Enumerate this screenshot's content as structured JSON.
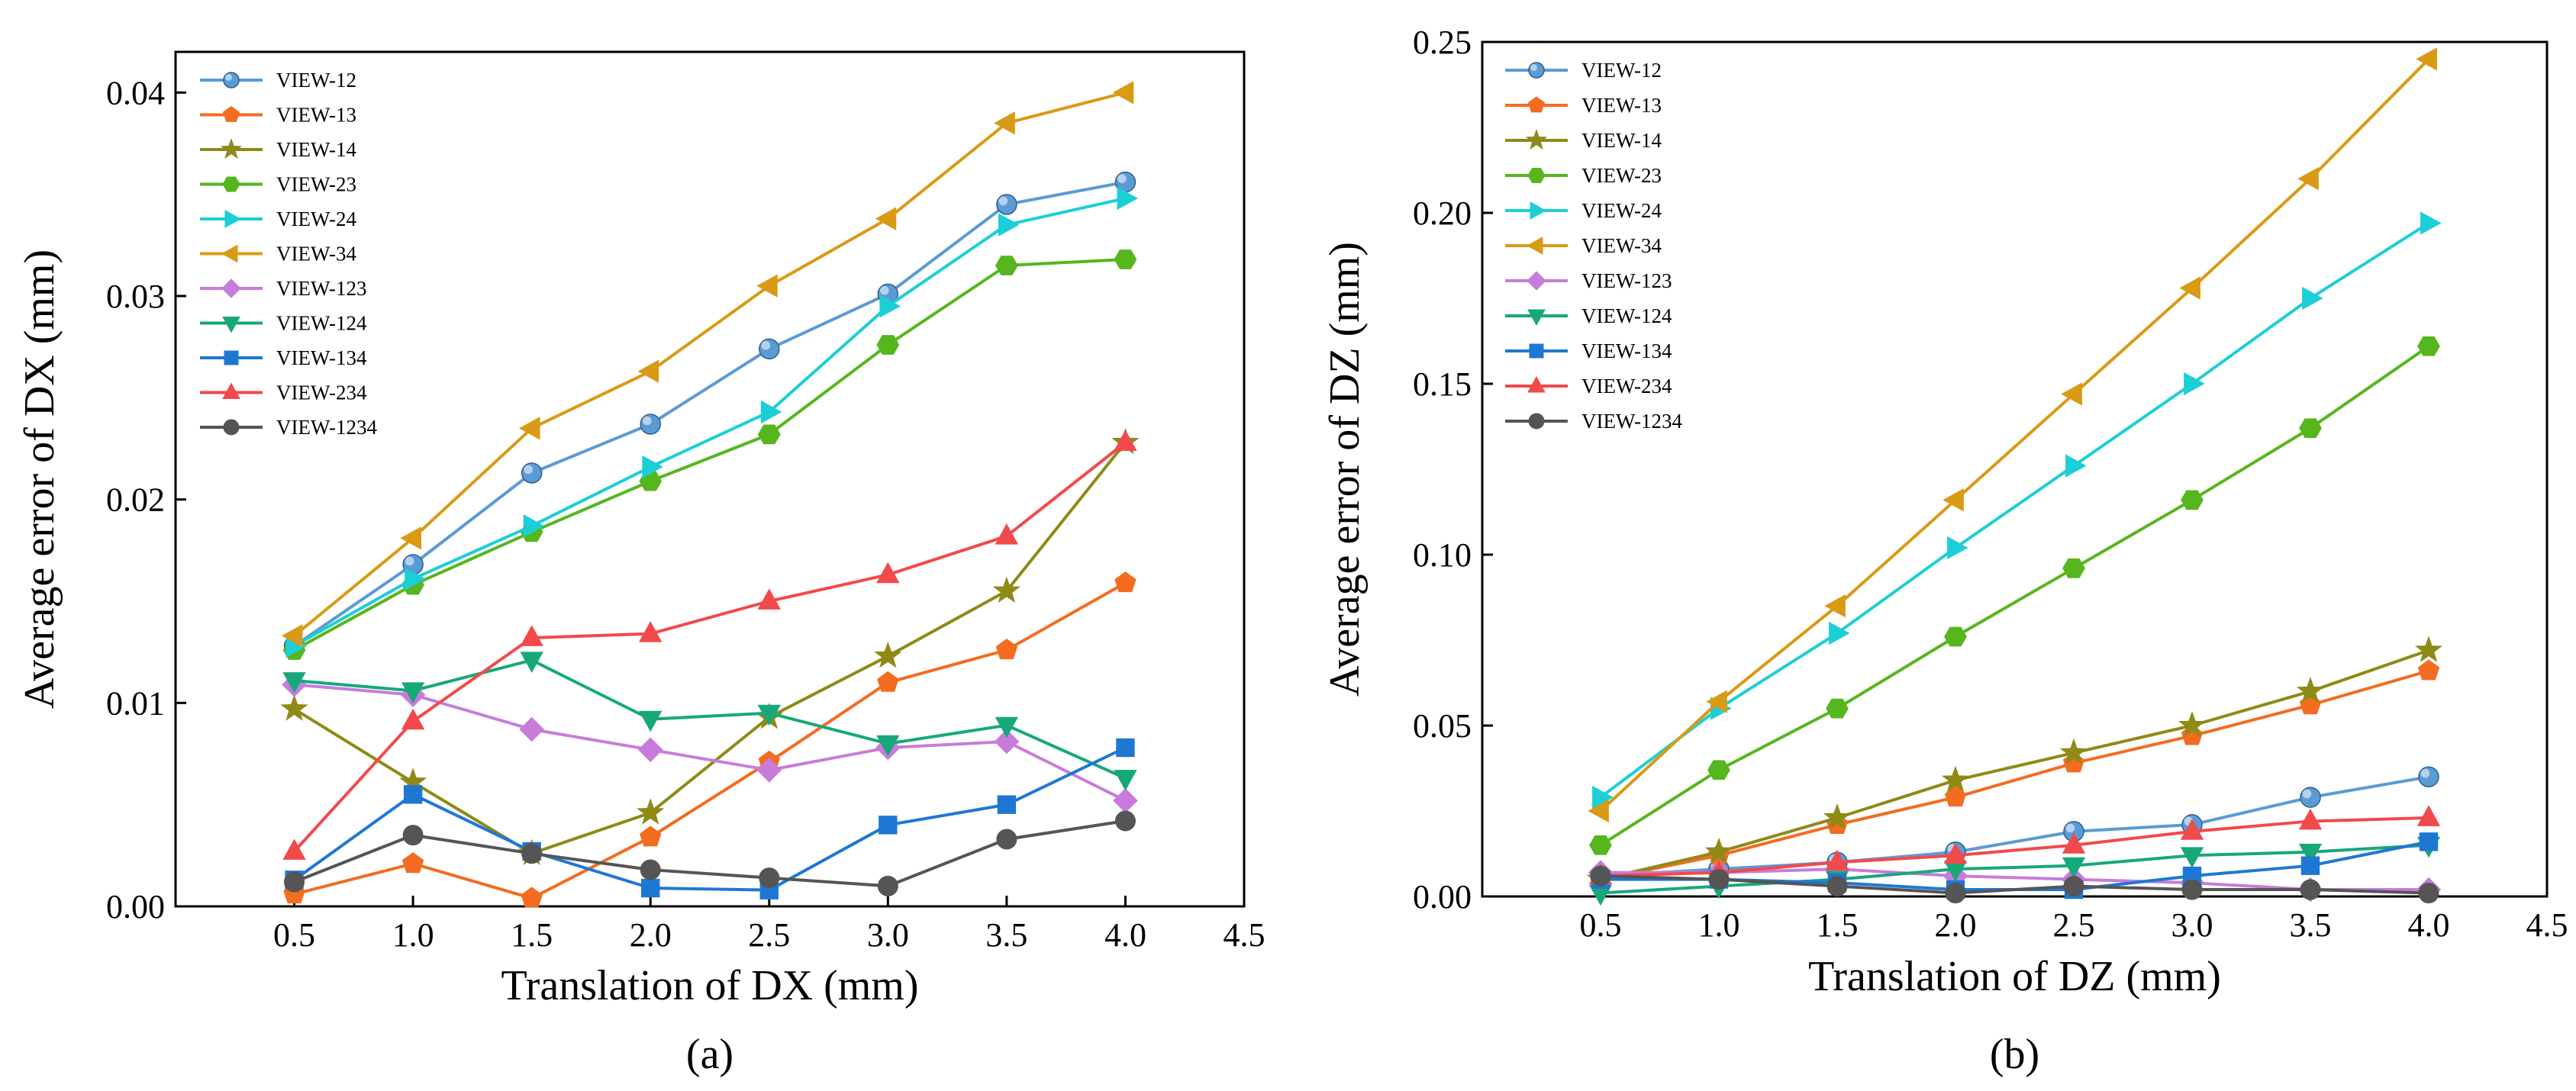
{
  "chart_data": [
    {
      "type": "line",
      "panel_label": "(a)",
      "xlabel": "Translation of DX (mm)",
      "ylabel": "Average error of DX (mm)",
      "xlim": [
        0,
        4.5
      ],
      "ylim": [
        0,
        0.042
      ],
      "xticks": [
        0.5,
        1.0,
        1.5,
        2.0,
        2.5,
        3.0,
        3.5,
        4.0,
        4.5
      ],
      "xtick_labels": [
        "0.5",
        "1.0",
        "1.5",
        "2.0",
        "2.5",
        "3.0",
        "3.5",
        "4.0",
        "4.5"
      ],
      "yticks": [
        0,
        0.01,
        0.02,
        0.03,
        0.04
      ],
      "ytick_labels": [
        "0.00",
        "0.01",
        "0.02",
        "0.03",
        "0.04"
      ],
      "legend_position": "top-left",
      "x": [
        0.5,
        1.0,
        1.5,
        2.0,
        2.5,
        3.0,
        3.5,
        4.0
      ],
      "series": [
        {
          "name": "VIEW-12",
          "color": "#5b9bd5",
          "marker": "sphere",
          "values": [
            0.0128,
            0.0168,
            0.0213,
            0.0237,
            0.0274,
            0.0301,
            0.0345,
            0.0356
          ]
        },
        {
          "name": "VIEW-13",
          "color": "#f36c20",
          "marker": "pentagon",
          "values": [
            0.0006,
            0.0021,
            0.0004,
            0.0034,
            0.0071,
            0.011,
            0.0126,
            0.0159
          ]
        },
        {
          "name": "VIEW-14",
          "color": "#8f8a16",
          "marker": "star",
          "values": [
            0.0097,
            0.0061,
            0.0026,
            0.0046,
            0.0093,
            0.0123,
            0.0155,
            0.0228
          ]
        },
        {
          "name": "VIEW-23",
          "color": "#56b61e",
          "marker": "hexagon",
          "values": [
            0.0126,
            0.0158,
            0.0184,
            0.0209,
            0.0232,
            0.0276,
            0.0315,
            0.0318
          ]
        },
        {
          "name": "VIEW-24",
          "color": "#1ccfd6",
          "marker": "triangle-right",
          "values": [
            0.0128,
            0.0161,
            0.0187,
            0.0216,
            0.0243,
            0.0295,
            0.0335,
            0.0348
          ]
        },
        {
          "name": "VIEW-34",
          "color": "#d99a15",
          "marker": "triangle-left",
          "values": [
            0.0133,
            0.0181,
            0.0235,
            0.0263,
            0.0305,
            0.0338,
            0.0385,
            0.04
          ]
        },
        {
          "name": "VIEW-123",
          "color": "#c77cdb",
          "marker": "diamond",
          "values": [
            0.0109,
            0.0104,
            0.0087,
            0.0077,
            0.0067,
            0.0078,
            0.0081,
            0.0052
          ]
        },
        {
          "name": "VIEW-124",
          "color": "#17a87a",
          "marker": "triangle-down",
          "values": [
            0.0111,
            0.0106,
            0.0121,
            0.0092,
            0.0095,
            0.008,
            0.0089,
            0.0063
          ]
        },
        {
          "name": "VIEW-134",
          "color": "#1f77d4",
          "marker": "square",
          "values": [
            0.0013,
            0.0055,
            0.0027,
            0.0009,
            0.0008,
            0.004,
            0.005,
            0.0078
          ]
        },
        {
          "name": "VIEW-234",
          "color": "#f2494b",
          "marker": "triangle-up",
          "values": [
            0.0027,
            0.0091,
            0.0132,
            0.0134,
            0.015,
            0.0163,
            0.0182,
            0.0228
          ]
        },
        {
          "name": "VIEW-1234",
          "color": "#555555",
          "marker": "circle",
          "values": [
            0.0012,
            0.0035,
            0.0026,
            0.0018,
            0.0014,
            0.001,
            0.0033,
            0.0042
          ]
        }
      ]
    },
    {
      "type": "line",
      "panel_label": "(b)",
      "xlabel": "Translation of DZ (mm)",
      "ylabel": "Average error of DZ (mm)",
      "xlim": [
        0,
        4.5
      ],
      "ylim": [
        0,
        0.25
      ],
      "xticks": [
        0.5,
        1.0,
        1.5,
        2.0,
        2.5,
        3.0,
        3.5,
        4.0,
        4.5
      ],
      "xtick_labels": [
        "0.5",
        "1.0",
        "1.5",
        "2.0",
        "2.5",
        "3.0",
        "3.5",
        "4.0",
        "4.5"
      ],
      "yticks": [
        0,
        0.05,
        0.1,
        0.15,
        0.2,
        0.25
      ],
      "ytick_labels": [
        "0.00",
        "0.05",
        "0.10",
        "0.15",
        "0.20",
        "0.25"
      ],
      "legend_position": "top-left",
      "x": [
        0.5,
        1.0,
        1.5,
        2.0,
        2.5,
        3.0,
        3.5,
        4.0
      ],
      "series": [
        {
          "name": "VIEW-12",
          "color": "#5b9bd5",
          "marker": "sphere",
          "values": [
            0.006,
            0.008,
            0.01,
            0.013,
            0.019,
            0.021,
            0.029,
            0.035
          ]
        },
        {
          "name": "VIEW-13",
          "color": "#f36c20",
          "marker": "pentagon",
          "values": [
            0.005,
            0.012,
            0.021,
            0.029,
            0.039,
            0.047,
            0.056,
            0.066
          ]
        },
        {
          "name": "VIEW-14",
          "color": "#8f8a16",
          "marker": "star",
          "values": [
            0.005,
            0.013,
            0.023,
            0.034,
            0.042,
            0.05,
            0.06,
            0.072
          ]
        },
        {
          "name": "VIEW-23",
          "color": "#56b61e",
          "marker": "hexagon",
          "values": [
            0.015,
            0.037,
            0.055,
            0.076,
            0.096,
            0.116,
            0.137,
            0.161
          ]
        },
        {
          "name": "VIEW-24",
          "color": "#1ccfd6",
          "marker": "triangle-right",
          "values": [
            0.029,
            0.055,
            0.077,
            0.102,
            0.126,
            0.15,
            0.175,
            0.197
          ]
        },
        {
          "name": "VIEW-34",
          "color": "#d99a15",
          "marker": "triangle-left",
          "values": [
            0.025,
            0.057,
            0.085,
            0.116,
            0.147,
            0.178,
            0.21,
            0.245
          ]
        },
        {
          "name": "VIEW-123",
          "color": "#c77cdb",
          "marker": "diamond",
          "values": [
            0.007,
            0.007,
            0.008,
            0.006,
            0.005,
            0.004,
            0.002,
            0.002
          ]
        },
        {
          "name": "VIEW-124",
          "color": "#17a87a",
          "marker": "triangle-down",
          "values": [
            0.001,
            0.003,
            0.005,
            0.008,
            0.009,
            0.012,
            0.013,
            0.015
          ]
        },
        {
          "name": "VIEW-134",
          "color": "#1f77d4",
          "marker": "square",
          "values": [
            0.005,
            0.005,
            0.004,
            0.002,
            0.002,
            0.006,
            0.009,
            0.016
          ]
        },
        {
          "name": "VIEW-234",
          "color": "#f2494b",
          "marker": "triangle-up",
          "values": [
            0.006,
            0.007,
            0.01,
            0.012,
            0.015,
            0.019,
            0.022,
            0.023
          ]
        },
        {
          "name": "VIEW-1234",
          "color": "#555555",
          "marker": "circle",
          "values": [
            0.006,
            0.005,
            0.003,
            0.001,
            0.003,
            0.002,
            0.002,
            0.001
          ]
        }
      ]
    }
  ]
}
